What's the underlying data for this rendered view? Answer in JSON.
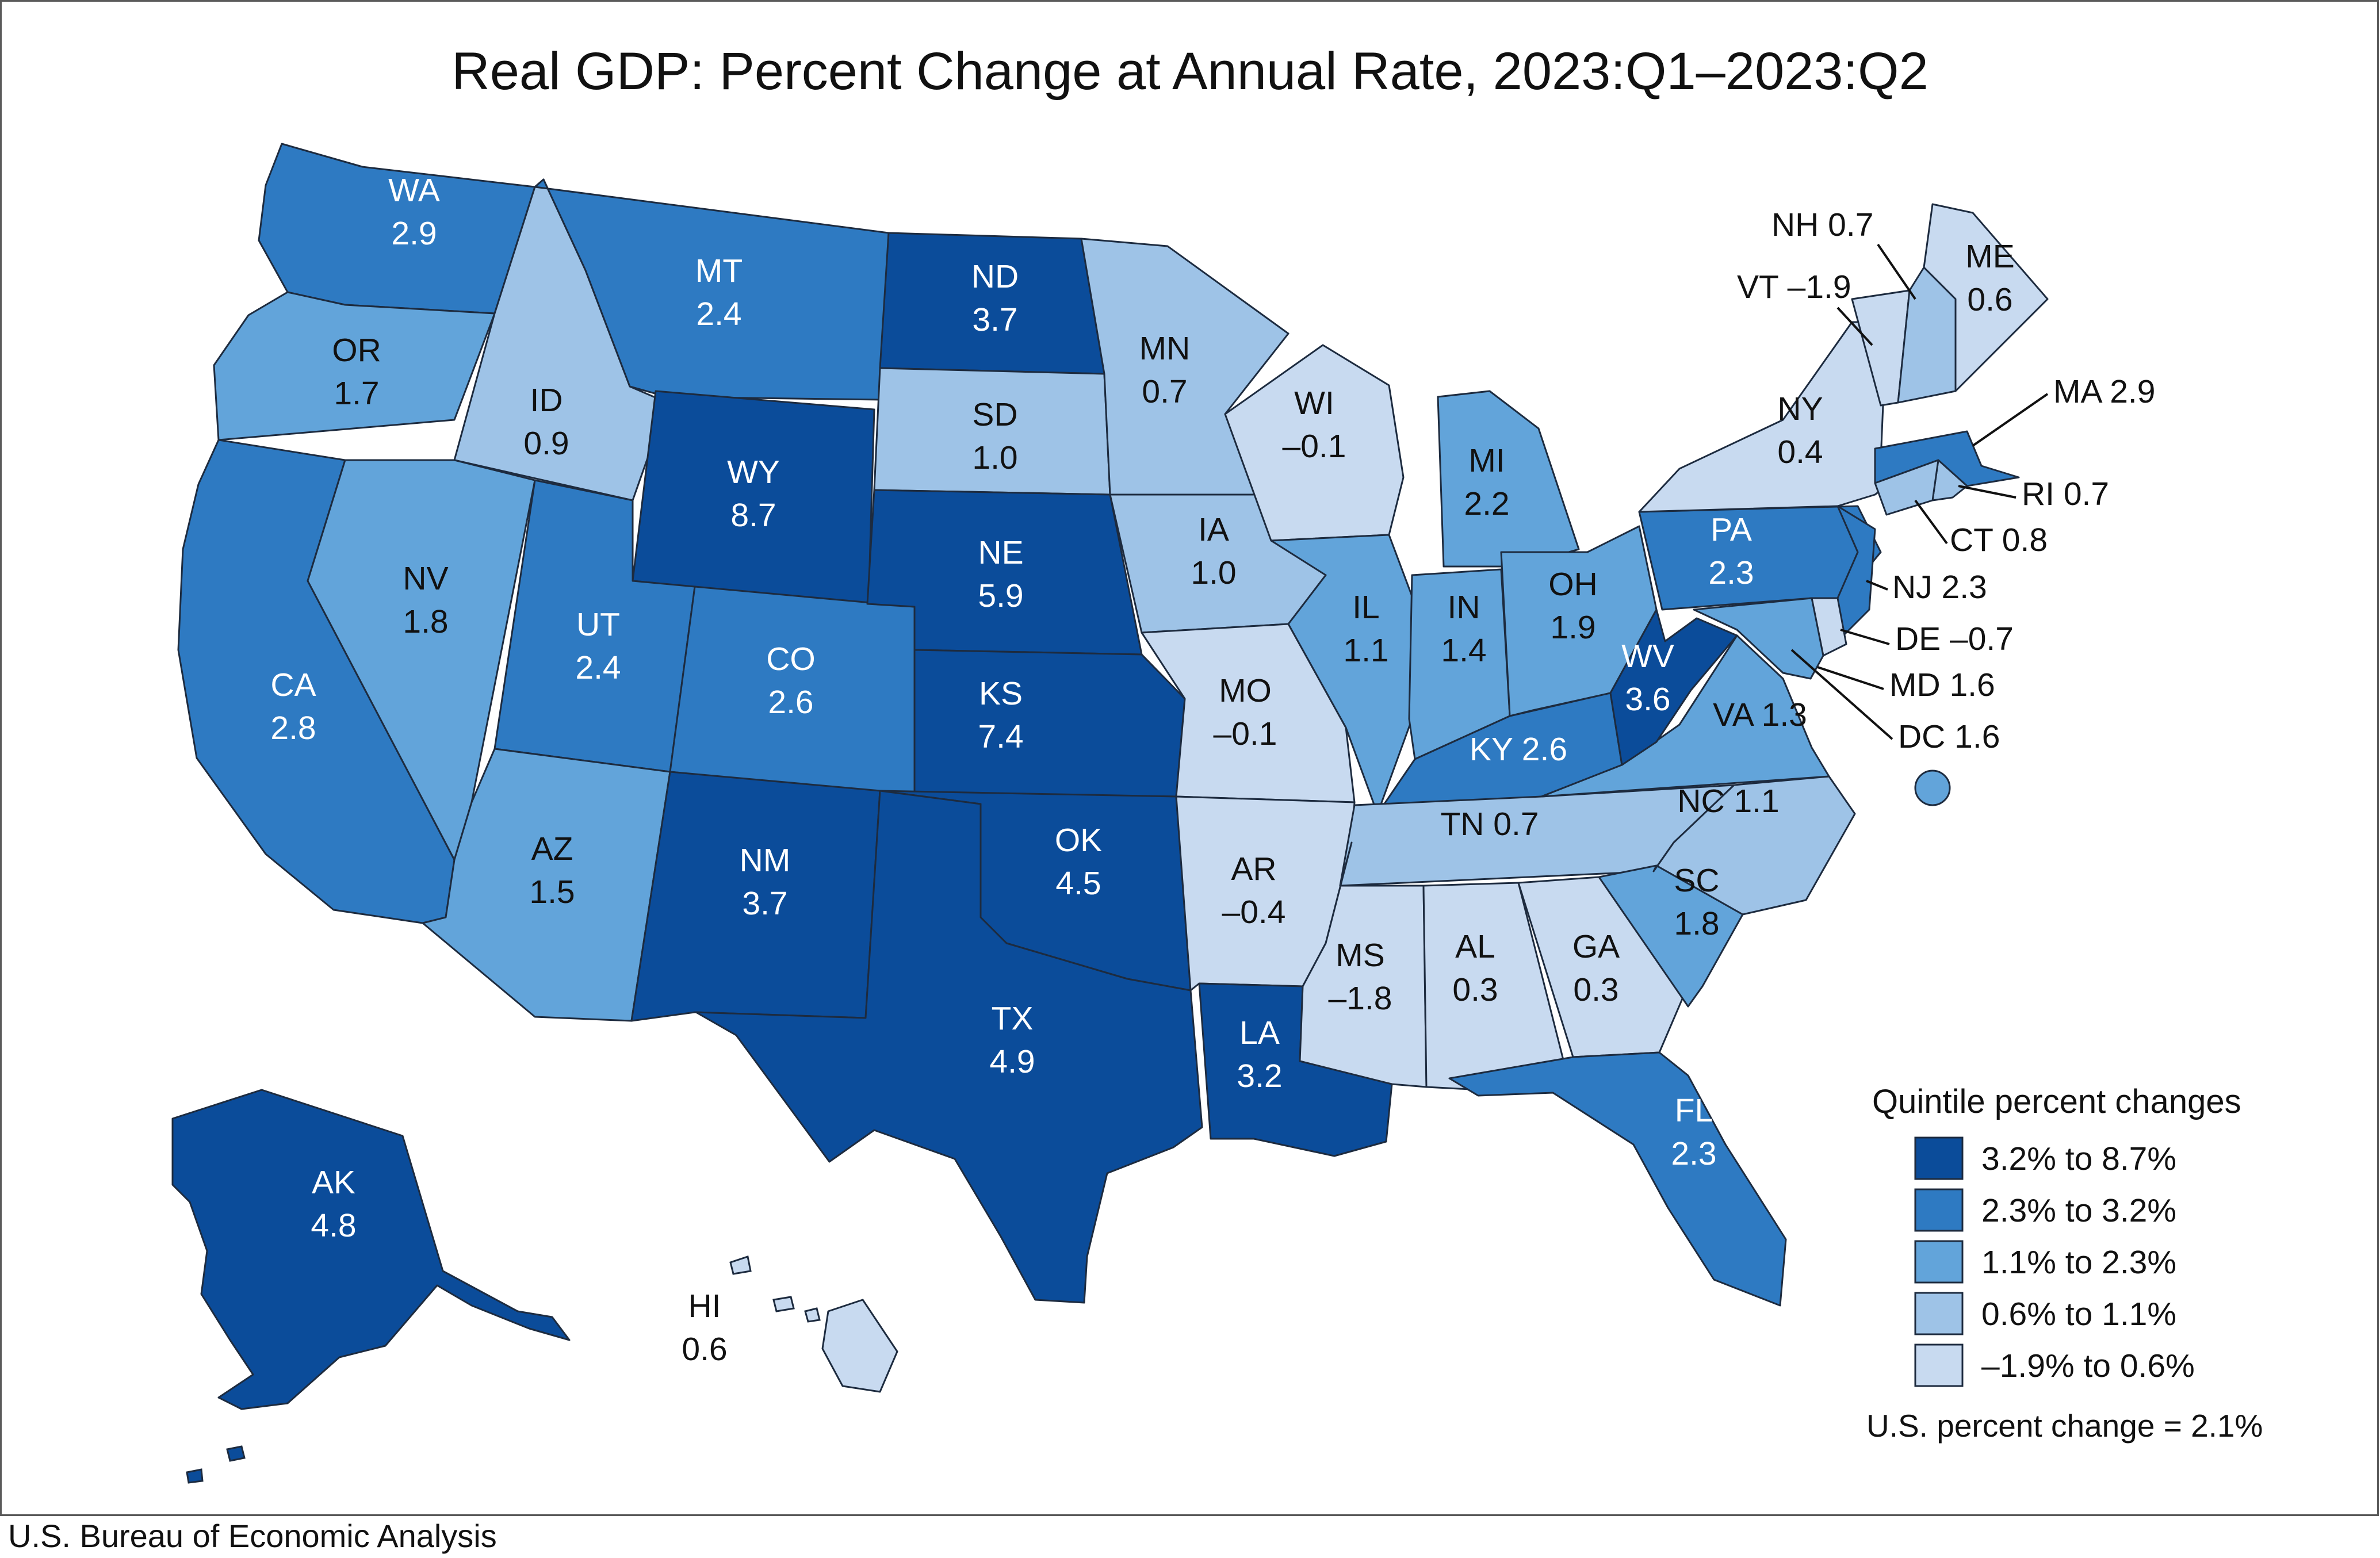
{
  "title": "Real GDP: Percent Change at Annual Rate, 2023:Q1–2023:Q2",
  "source": "U.S. Bureau of Economic Analysis",
  "legend": {
    "title": "Quintile percent changes",
    "bins": [
      {
        "label": "3.2% to 8.7%",
        "color": "#0b4c9a"
      },
      {
        "label": "2.3% to 3.2%",
        "color": "#2e7ac2"
      },
      {
        "label": "1.1% to 2.3%",
        "color": "#62a4da"
      },
      {
        "label": "0.6% to 1.1%",
        "color": "#9ec3e7"
      },
      {
        "label": "–1.9% to 0.6%",
        "color": "#c8daf0"
      }
    ],
    "us_note": "U.S. percent change = 2.1%"
  },
  "states": [
    {
      "id": "WA",
      "name": "WA",
      "value": "2.9",
      "bin": 1
    },
    {
      "id": "OR",
      "name": "OR",
      "value": "1.7",
      "bin": 2
    },
    {
      "id": "CA",
      "name": "CA",
      "value": "2.8",
      "bin": 1
    },
    {
      "id": "ID",
      "name": "ID",
      "value": "0.9",
      "bin": 3
    },
    {
      "id": "NV",
      "name": "NV",
      "value": "1.8",
      "bin": 2
    },
    {
      "id": "MT",
      "name": "MT",
      "value": "2.4",
      "bin": 1
    },
    {
      "id": "WY",
      "name": "WY",
      "value": "8.7",
      "bin": 0
    },
    {
      "id": "UT",
      "name": "UT",
      "value": "2.4",
      "bin": 1
    },
    {
      "id": "AZ",
      "name": "AZ",
      "value": "1.5",
      "bin": 2
    },
    {
      "id": "CO",
      "name": "CO",
      "value": "2.6",
      "bin": 1
    },
    {
      "id": "NM",
      "name": "NM",
      "value": "3.7",
      "bin": 0
    },
    {
      "id": "ND",
      "name": "ND",
      "value": "3.7",
      "bin": 0
    },
    {
      "id": "SD",
      "name": "SD",
      "value": "1.0",
      "bin": 3
    },
    {
      "id": "NE",
      "name": "NE",
      "value": "5.9",
      "bin": 0
    },
    {
      "id": "KS",
      "name": "KS",
      "value": "7.4",
      "bin": 0
    },
    {
      "id": "OK",
      "name": "OK",
      "value": "4.5",
      "bin": 0
    },
    {
      "id": "TX",
      "name": "TX",
      "value": "4.9",
      "bin": 0
    },
    {
      "id": "MN",
      "name": "MN",
      "value": "0.7",
      "bin": 3
    },
    {
      "id": "IA",
      "name": "IA",
      "value": "1.0",
      "bin": 3
    },
    {
      "id": "MO",
      "name": "MO",
      "value": "–0.1",
      "bin": 4
    },
    {
      "id": "AR",
      "name": "AR",
      "value": "–0.4",
      "bin": 4
    },
    {
      "id": "LA",
      "name": "LA",
      "value": "3.2",
      "bin": 0
    },
    {
      "id": "WI",
      "name": "WI",
      "value": "–0.1",
      "bin": 4
    },
    {
      "id": "IL",
      "name": "IL",
      "value": "1.1",
      "bin": 2
    },
    {
      "id": "MI",
      "name": "MI",
      "value": "2.2",
      "bin": 2
    },
    {
      "id": "IN",
      "name": "IN",
      "value": "1.4",
      "bin": 2
    },
    {
      "id": "OH",
      "name": "OH",
      "value": "1.9",
      "bin": 2
    },
    {
      "id": "KY",
      "name": "KY",
      "value": "2.6",
      "bin": 1
    },
    {
      "id": "TN",
      "name": "TN",
      "value": "0.7",
      "bin": 3
    },
    {
      "id": "MS",
      "name": "MS",
      "value": "–1.8",
      "bin": 4
    },
    {
      "id": "AL",
      "name": "AL",
      "value": "0.3",
      "bin": 4
    },
    {
      "id": "GA",
      "name": "GA",
      "value": "0.3",
      "bin": 4
    },
    {
      "id": "FL",
      "name": "FL",
      "value": "2.3",
      "bin": 1
    },
    {
      "id": "SC",
      "name": "SC",
      "value": "1.8",
      "bin": 2
    },
    {
      "id": "NC",
      "name": "NC",
      "value": "1.1",
      "bin": 3
    },
    {
      "id": "VA",
      "name": "VA",
      "value": "1.3",
      "bin": 2
    },
    {
      "id": "WV",
      "name": "WV",
      "value": "3.6",
      "bin": 0
    },
    {
      "id": "PA",
      "name": "PA",
      "value": "2.3",
      "bin": 1
    },
    {
      "id": "NY",
      "name": "NY",
      "value": "0.4",
      "bin": 4
    },
    {
      "id": "ME",
      "name": "ME",
      "value": "0.6",
      "bin": 4
    },
    {
      "id": "VT",
      "name": "VT",
      "value": "–1.9",
      "bin": 4
    },
    {
      "id": "NH",
      "name": "NH",
      "value": "0.7",
      "bin": 3
    },
    {
      "id": "MA",
      "name": "MA",
      "value": "2.9",
      "bin": 1
    },
    {
      "id": "RI",
      "name": "RI",
      "value": "0.7",
      "bin": 3
    },
    {
      "id": "CT",
      "name": "CT",
      "value": "0.8",
      "bin": 3
    },
    {
      "id": "NJ",
      "name": "NJ",
      "value": "2.3",
      "bin": 1
    },
    {
      "id": "DE",
      "name": "DE",
      "value": "–0.7",
      "bin": 4
    },
    {
      "id": "MD",
      "name": "MD",
      "value": "1.6",
      "bin": 2
    },
    {
      "id": "DC",
      "name": "DC",
      "value": "1.6",
      "bin": 2
    },
    {
      "id": "AK",
      "name": "AK",
      "value": "4.8",
      "bin": 0
    },
    {
      "id": "HI",
      "name": "HI",
      "value": "0.6",
      "bin": 4
    }
  ]
}
